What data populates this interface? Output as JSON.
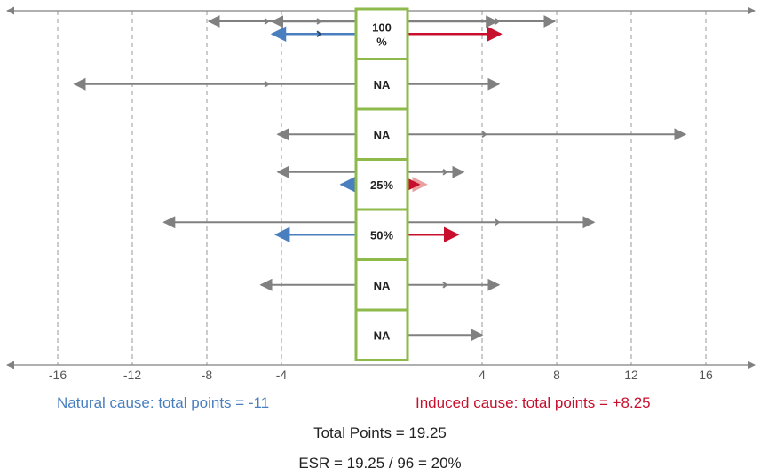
{
  "chart_data": {
    "type": "interval-arrows",
    "xlim": [
      -18,
      18
    ],
    "ticks": [
      -16,
      -12,
      -8,
      -4,
      4,
      8,
      12,
      16
    ],
    "grid": true,
    "rows": [
      {
        "label": "100\n%",
        "gray": [
          [
            -7.9,
            7.9
          ],
          [
            -4.5,
            4.8
          ]
        ],
        "grayMarks": [
          -4.8,
          -2,
          4.8
        ],
        "natural": -4.5,
        "naturalMarks": [
          -2
        ],
        "induced": 5.0
      },
      {
        "label": "NA",
        "gray": [
          [
            -15.1,
            4.9
          ]
        ],
        "grayMarks": [
          -4.8
        ],
        "natural": null,
        "induced": null
      },
      {
        "label": "NA",
        "gray": [
          [
            -4.2,
            14.9
          ]
        ],
        "grayMarks": [
          4.1
        ],
        "natural": null,
        "induced": null
      },
      {
        "label": "25%",
        "gray": [
          [
            -4.2,
            3.0
          ]
        ],
        "grayMarks": [
          2.0
        ],
        "natural": -0.8,
        "induced": 0.6,
        "inducedLight": 1.0
      },
      {
        "label": "50%",
        "gray": [
          [
            -10.3,
            10.0
          ]
        ],
        "grayMarks": [
          4.8
        ],
        "natural": -4.3,
        "induced": 2.7
      },
      {
        "label": "NA",
        "gray": [
          [
            -5.1,
            4.9
          ]
        ],
        "grayMarks": [
          2.0
        ],
        "natural": null,
        "induced": null
      },
      {
        "label": "NA",
        "gray": [
          [
            0,
            4.0
          ]
        ],
        "grayMarks": [],
        "natural": null,
        "induced": null
      }
    ],
    "colors": {
      "gray": "#808080",
      "natural": "#4a7fbf",
      "naturalDark": "#2a4a72",
      "induced": "#c8102e",
      "inducedLight": "#e8a0a0",
      "box": "#8dba4b",
      "grid": "#9a9a9a"
    }
  },
  "captions": {
    "natural": "Natural cause: total points = -11",
    "induced": "Induced cause: total points = +8.25",
    "total": "Total Points = 19.25",
    "esr": "ESR = 19.25 / 96 = 20%"
  }
}
